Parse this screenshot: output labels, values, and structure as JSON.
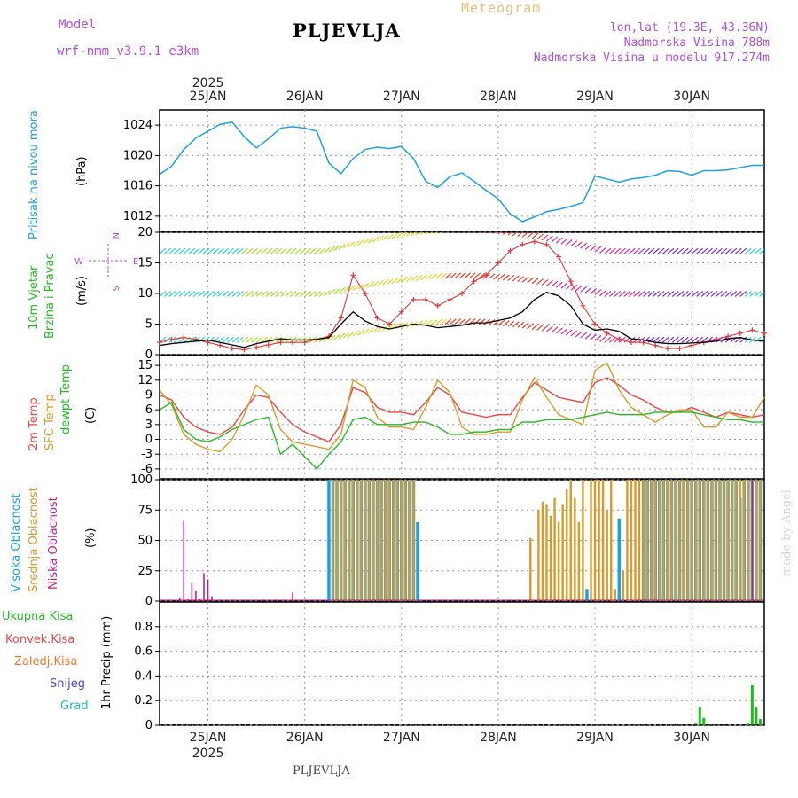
{
  "header": {
    "model_label": "Model",
    "model_name": "wrf-nmm_v3.9.1 e3km",
    "station": "PLJEVLJA",
    "meteogram": "Meteogram",
    "lonlat": "lon,lat (19.3E, 43.36N)",
    "elevation": "Nadmorska Visina 788m",
    "model_elevation": "Nadmorska Visina u modelu 917.274m",
    "bottom_station": "PLJEVLJA",
    "credit": "made by Angel"
  },
  "colors": {
    "pressure": "#1ea0e6",
    "wind_speed": "#000000",
    "gust": "#e03a3a",
    "temp2m": "#ee4444",
    "sfc_temp": "#d99a2b",
    "dewpoint": "#22bb22",
    "high_cloud": "#1ea0e6",
    "mid_cloud": "#d99a2b",
    "low_cloud": "#c0208a",
    "total_precip": "#22bb22",
    "conv_precip": "#ee4444",
    "frz_precip": "#f07830",
    "snow": "#4444ee",
    "hail": "#22bbbb",
    "label_purple": "#b04fd8"
  },
  "chart_data": [
    {
      "type": "line",
      "name": "pressure",
      "ylabel": "Pritisak na nivou mora",
      "unit": "(hPa)",
      "ylim": [
        1010,
        1026
      ],
      "yticks": [
        1012,
        1016,
        1020,
        1024
      ],
      "x": [
        0,
        3,
        6,
        9,
        12,
        15,
        18,
        21,
        24,
        27,
        30,
        33,
        36,
        39,
        42,
        45,
        48,
        51,
        54,
        57,
        60,
        63,
        66,
        69,
        72,
        75,
        78,
        81,
        84,
        87,
        90,
        93,
        96,
        99,
        102,
        105,
        108,
        111,
        114,
        117,
        120,
        123,
        126,
        129,
        132,
        135,
        138,
        141,
        144,
        147,
        150
      ],
      "values": [
        1017.5,
        1018.6,
        1020.8,
        1022.3,
        1023.2,
        1024.1,
        1024.4,
        1022.5,
        1021.0,
        1022.2,
        1023.6,
        1023.8,
        1023.6,
        1023.2,
        1019.0,
        1017.6,
        1019.6,
        1020.8,
        1021.1,
        1020.9,
        1021.2,
        1019.6,
        1016.6,
        1015.8,
        1017.2,
        1017.7,
        1016.6,
        1015.4,
        1014.3,
        1012.3,
        1011.3,
        1011.9,
        1012.6,
        1012.9,
        1013.3,
        1013.8,
        1017.3,
        1016.9,
        1016.5,
        1016.9,
        1017.1,
        1017.4,
        1018.0,
        1017.9,
        1017.4,
        1018.0,
        1018.0,
        1018.1,
        1018.4,
        1018.7,
        1018.7
      ],
      "grid": true
    },
    {
      "type": "line",
      "name": "wind",
      "ylabel_lines": [
        "10m Vjetar",
        "Brzina i Pravac"
      ],
      "unit": "(m/s)",
      "compass": {
        "n": "N",
        "e": "E",
        "w": "W",
        "s": "S"
      },
      "ylim": [
        0,
        20
      ],
      "yticks": [
        0,
        5,
        10,
        15,
        20
      ],
      "x": [
        0,
        3,
        6,
        9,
        12,
        15,
        18,
        21,
        24,
        27,
        30,
        33,
        36,
        39,
        42,
        45,
        48,
        51,
        54,
        57,
        60,
        63,
        66,
        69,
        72,
        75,
        78,
        81,
        84,
        87,
        90,
        93,
        96,
        99,
        102,
        105,
        108,
        111,
        114,
        117,
        120,
        123,
        126,
        129,
        132,
        135,
        138,
        141,
        144,
        147,
        150
      ],
      "values": [
        1.5,
        1.8,
        2.0,
        2.2,
        2.4,
        2.0,
        1.6,
        1.2,
        1.8,
        2.2,
        2.6,
        2.4,
        2.4,
        2.5,
        2.8,
        5.0,
        7.0,
        5.5,
        4.6,
        4.2,
        4.6,
        5.0,
        4.8,
        4.4,
        4.6,
        4.8,
        5.2,
        5.2,
        5.6,
        6.0,
        7.0,
        9.0,
        10.2,
        9.6,
        8.0,
        5.0,
        4.0,
        4.2,
        3.8,
        2.6,
        2.4,
        2.0,
        1.8,
        1.8,
        1.9,
        2.0,
        2.2,
        2.6,
        2.8,
        2.4,
        2.2
      ],
      "gust_values": [
        2.0,
        2.5,
        2.8,
        2.5,
        2.0,
        1.5,
        1.0,
        0.8,
        1.2,
        1.6,
        2.0,
        2.0,
        2.0,
        2.5,
        3.0,
        6.0,
        13.0,
        10.0,
        6.0,
        5.0,
        7.0,
        9.0,
        9.0,
        8.0,
        9.0,
        10.0,
        12.0,
        13.0,
        15.0,
        17.0,
        18.0,
        18.5,
        18.0,
        16.0,
        12.0,
        8.0,
        5.0,
        3.5,
        2.5,
        2.0,
        2.0,
        1.5,
        1.0,
        1.0,
        1.5,
        2.0,
        2.5,
        3.0,
        3.5,
        4.0,
        3.5
      ],
      "grid": true
    },
    {
      "type": "line",
      "name": "temperature",
      "ylabel_lines": [
        "2m Temp",
        "SFC Temp",
        "dewpt Temp"
      ],
      "unit": "(C)",
      "ylim": [
        -8,
        17
      ],
      "yticks": [
        -6,
        -3,
        0,
        3,
        6,
        9,
        12,
        15
      ],
      "x": [
        0,
        3,
        6,
        9,
        12,
        15,
        18,
        21,
        24,
        27,
        30,
        33,
        36,
        39,
        42,
        45,
        48,
        51,
        54,
        57,
        60,
        63,
        66,
        69,
        72,
        75,
        78,
        81,
        84,
        87,
        90,
        93,
        96,
        99,
        102,
        105,
        108,
        111,
        114,
        117,
        120,
        123,
        126,
        129,
        132,
        135,
        138,
        141,
        144,
        147,
        150
      ],
      "series": [
        {
          "name": "2m Temp",
          "values": [
            9.0,
            8.0,
            4.5,
            2.5,
            1.5,
            1.0,
            2.5,
            6.0,
            9.0,
            8.5,
            5.5,
            3.0,
            1.5,
            0.5,
            -0.5,
            3.0,
            10.5,
            9.5,
            6.5,
            5.5,
            5.5,
            5.0,
            7.5,
            10.5,
            9.0,
            5.5,
            5.0,
            4.5,
            5.0,
            5.0,
            8.5,
            11.5,
            10.0,
            8.5,
            8.0,
            7.5,
            11.5,
            12.5,
            11.0,
            9.0,
            8.0,
            6.5,
            5.5,
            5.5,
            6.5,
            5.5,
            4.5,
            5.5,
            5.0,
            4.5,
            5.0
          ]
        },
        {
          "name": "SFC Temp",
          "values": [
            10.0,
            7.0,
            1.0,
            -1.0,
            -2.0,
            -2.5,
            0.0,
            5.0,
            11.0,
            9.0,
            2.0,
            -0.5,
            -1.0,
            -1.5,
            -2.0,
            1.0,
            12.0,
            10.5,
            4.5,
            2.5,
            2.5,
            2.0,
            6.5,
            12.0,
            9.5,
            2.5,
            1.0,
            1.0,
            1.5,
            1.5,
            8.0,
            12.5,
            8.5,
            5.0,
            4.0,
            3.0,
            14.0,
            15.5,
            10.0,
            6.5,
            5.0,
            3.5,
            5.0,
            6.0,
            6.0,
            2.5,
            2.5,
            5.5,
            4.5,
            4.5,
            8.5
          ]
        },
        {
          "name": "dewpt Temp",
          "values": [
            6.0,
            7.5,
            2.0,
            0.0,
            -0.5,
            0.5,
            2.0,
            3.0,
            4.0,
            4.5,
            -3.0,
            -1.0,
            -3.5,
            -6.0,
            -3.0,
            -0.5,
            4.0,
            4.5,
            3.0,
            3.0,
            3.0,
            3.5,
            3.5,
            2.5,
            1.0,
            1.0,
            1.5,
            1.5,
            2.0,
            2.0,
            3.5,
            3.5,
            4.0,
            4.0,
            4.0,
            4.5,
            5.0,
            5.5,
            5.0,
            5.0,
            5.0,
            5.5,
            5.5,
            5.5,
            5.5,
            5.0,
            4.5,
            4.0,
            4.0,
            3.5,
            3.5
          ]
        }
      ],
      "grid": true
    },
    {
      "type": "bar",
      "name": "cloud",
      "ylabel_lines": [
        "Visoka Oblacnost",
        "Srednja Oblacnost",
        "Niska Oblacnost"
      ],
      "unit": "(%)",
      "ylim": [
        0,
        100
      ],
      "yticks": [
        0,
        25,
        50,
        75,
        100
      ],
      "series": [
        {
          "name": "Visoka Oblacnost",
          "hours": [
            42,
            43,
            44,
            45,
            46,
            47,
            48,
            49,
            50,
            51,
            52,
            53,
            54,
            55,
            56,
            57,
            58,
            59,
            60,
            61,
            62,
            63,
            64,
            106,
            114,
            120,
            121,
            122,
            123,
            124,
            125,
            126,
            127,
            128,
            129,
            130,
            131,
            132,
            133,
            134,
            135,
            136,
            137,
            138,
            139,
            140,
            141,
            142,
            143,
            144,
            145,
            146,
            147,
            148,
            149
          ],
          "values": [
            100,
            100,
            100,
            100,
            100,
            100,
            100,
            100,
            100,
            100,
            100,
            100,
            100,
            100,
            100,
            100,
            100,
            100,
            100,
            100,
            100,
            100,
            65,
            10,
            68,
            100,
            100,
            100,
            100,
            100,
            100,
            100,
            100,
            100,
            100,
            100,
            100,
            100,
            100,
            100,
            100,
            100,
            100,
            100,
            100,
            100,
            100,
            100,
            100,
            85,
            100,
            100,
            100,
            100,
            100
          ]
        },
        {
          "name": "Srednja Oblacnost",
          "hours": [
            43,
            44,
            45,
            46,
            47,
            48,
            49,
            50,
            51,
            52,
            53,
            54,
            55,
            56,
            57,
            58,
            59,
            60,
            61,
            62,
            63,
            92,
            94,
            95,
            96,
            97,
            98,
            99,
            100,
            101,
            102,
            103,
            104,
            105,
            107,
            108,
            109,
            110,
            111,
            112,
            113,
            115,
            116,
            117,
            118,
            119,
            120,
            121,
            122,
            123,
            124,
            125,
            126,
            127,
            128,
            129,
            130,
            131,
            132,
            133,
            134,
            135,
            136,
            137,
            138,
            139,
            140,
            141,
            142,
            143,
            144,
            145,
            146,
            147,
            148,
            149
          ],
          "values": [
            100,
            100,
            100,
            100,
            100,
            100,
            100,
            100,
            100,
            100,
            100,
            100,
            100,
            100,
            100,
            100,
            100,
            100,
            100,
            100,
            100,
            52,
            75,
            82,
            80,
            70,
            85,
            65,
            80,
            92,
            100,
            85,
            65,
            100,
            100,
            100,
            100,
            100,
            75,
            100,
            10,
            25,
            100,
            100,
            100,
            100,
            100,
            100,
            100,
            100,
            100,
            100,
            100,
            100,
            100,
            100,
            100,
            100,
            100,
            100,
            100,
            100,
            100,
            100,
            100,
            100,
            100,
            100,
            100,
            100,
            100,
            100,
            100,
            100,
            100,
            100
          ]
        },
        {
          "name": "Niska Oblacnost",
          "hours": [
            5,
            6,
            7,
            8,
            9,
            10,
            11,
            12,
            13,
            33,
            147
          ],
          "values": [
            3,
            66,
            2,
            15,
            8,
            2,
            23,
            18,
            4,
            7,
            100
          ]
        }
      ],
      "grid": true
    },
    {
      "type": "bar",
      "name": "precipitation",
      "ylabel": "1hr Precip (mm)",
      "legend": [
        "Ukupna Kisa",
        "Konvek.Kisa",
        "Zaledj.Kisa",
        "Snijeg",
        "Grad"
      ],
      "ylim": [
        0,
        1.0
      ],
      "yticks": [
        0,
        0.2,
        0.4,
        0.6,
        0.8
      ],
      "hours": [
        133,
        134,
        135,
        146,
        147,
        148,
        149
      ],
      "values": [
        0.02,
        0.15,
        0.06,
        0.02,
        0.33,
        0.15,
        0.05
      ],
      "grid": true
    }
  ],
  "time_axis": {
    "start_hour": 0,
    "end_hour": 150,
    "day_labels": [
      "25JAN",
      "26JAN",
      "27JAN",
      "28JAN",
      "29JAN",
      "30JAN"
    ],
    "day_hours": [
      12,
      36,
      60,
      84,
      108,
      132
    ],
    "year_label": "2025"
  }
}
